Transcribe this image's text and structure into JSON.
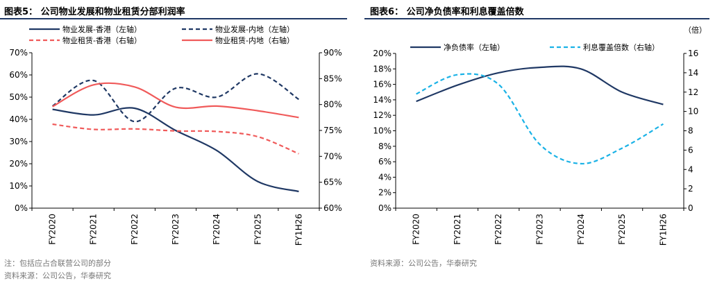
{
  "left": {
    "title": "图表5：  公司物业发展和物业租赁分部利润率",
    "note": "注：包括应占合联营公司的部分",
    "source": "资料来源：公司公告，华泰研究"
  },
  "right": {
    "title": "图表6：  公司净负债率和利息覆盖倍数",
    "unit_right": "（倍）",
    "source": "资料来源：公司公告，华泰研究"
  },
  "colors": {
    "navy": "#1f3864",
    "red": "#f05a5a",
    "cyan": "#1ab2e6",
    "title_rule": "#1f3864"
  },
  "chart_data": [
    {
      "type": "line",
      "title": "",
      "categories": [
        "FY2020",
        "FY2021",
        "FY2022",
        "FY2023",
        "FY2024",
        "FY2025",
        "FY1H26"
      ],
      "y_left": {
        "min": 0,
        "max": 70,
        "step": 10,
        "unit": "%",
        "ticks": [
          "0%",
          "10%",
          "20%",
          "30%",
          "40%",
          "50%",
          "60%",
          "70%"
        ]
      },
      "y_right": {
        "min": 60,
        "max": 90,
        "step": 5,
        "unit": "%",
        "ticks": [
          "60%",
          "65%",
          "70%",
          "75%",
          "80%",
          "85%",
          "90%"
        ]
      },
      "grid": false,
      "legend_position": "top",
      "series": [
        {
          "name": "物业发展-香港（左轴）",
          "axis": "left",
          "style": "solid",
          "color": "#1f3864",
          "values": [
            44.5,
            42,
            45,
            35,
            26,
            12,
            7.5
          ]
        },
        {
          "name": "物业发展-内地（左轴）",
          "axis": "left",
          "style": "dashed",
          "color": "#1f3864",
          "values": [
            46,
            57.5,
            39,
            54,
            50,
            60.5,
            49
          ]
        },
        {
          "name": "物业租赁-香港（右轴）",
          "axis": "right",
          "style": "dashed",
          "color": "#f05a5a",
          "values": [
            76.2,
            75.2,
            75.3,
            74.9,
            74.8,
            73.8,
            70.5
          ]
        },
        {
          "name": "物业租赁-内地（右轴）",
          "axis": "right",
          "style": "solid",
          "color": "#f05a5a",
          "values": [
            79.6,
            83.8,
            83.4,
            79.5,
            79.7,
            78.8,
            77.5
          ]
        }
      ]
    },
    {
      "type": "line",
      "title": "",
      "categories": [
        "FY2020",
        "FY2021",
        "FY2022",
        "FY2023",
        "FY2024",
        "FY2025",
        "FY1H26"
      ],
      "y_left": {
        "min": 0,
        "max": 20,
        "step": 2,
        "unit": "%",
        "ticks": [
          "0%",
          "2%",
          "4%",
          "6%",
          "8%",
          "10%",
          "12%",
          "14%",
          "16%",
          "18%",
          "20%"
        ]
      },
      "y_right": {
        "min": 0,
        "max": 16,
        "step": 2,
        "unit": "倍",
        "ticks": [
          "0",
          "2",
          "4",
          "6",
          "8",
          "10",
          "12",
          "14",
          "16"
        ]
      },
      "grid": false,
      "legend_position": "top",
      "series": [
        {
          "name": "净负债率（左轴）",
          "axis": "left",
          "style": "solid",
          "color": "#1f3864",
          "values": [
            13.8,
            15.9,
            17.5,
            18.2,
            18.0,
            15.0,
            13.4
          ]
        },
        {
          "name": "利息覆盖倍数（右轴）",
          "axis": "right",
          "style": "dashed",
          "color": "#1ab2e6",
          "values": [
            11.8,
            13.8,
            12.8,
            6.6,
            4.6,
            6.2,
            8.7
          ]
        }
      ]
    }
  ]
}
